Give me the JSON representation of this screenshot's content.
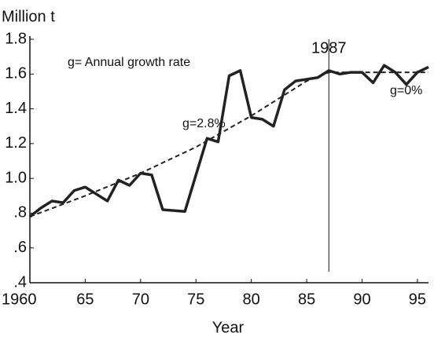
{
  "chart_data": {
    "type": "line",
    "y_label": "Million t",
    "x_label": "Year",
    "annotations": [
      "g= Annual growth rate",
      "g=2.8%",
      "g=0%"
    ],
    "vline": 1987,
    "xlim": [
      1960,
      1996
    ],
    "xticks": [
      {
        "value": 1960,
        "label": "1960"
      },
      {
        "value": 1965,
        "label": "65"
      },
      {
        "value": 1970,
        "label": "70"
      },
      {
        "value": 1975,
        "label": "75"
      },
      {
        "value": 1980,
        "label": "80"
      },
      {
        "value": 1985,
        "label": "85"
      },
      {
        "value": 1990,
        "label": "90"
      },
      {
        "value": 1995,
        "label": "95"
      }
    ],
    "ylim": [
      0.4,
      1.8
    ],
    "yticks": [
      {
        "value": 0.4,
        "label": ".4"
      },
      {
        "value": 0.6,
        "label": ".6"
      },
      {
        "value": 0.8,
        "label": ".8"
      },
      {
        "value": 1.0,
        "label": "1.0"
      },
      1.2,
      1.4,
      1.6,
      1.8
    ],
    "series": [
      {
        "color": "#222222",
        "dashed": false,
        "x": [
          1960,
          1961,
          1962,
          1963,
          1964,
          1965,
          1966,
          1967,
          1968,
          1969,
          1970,
          1971,
          1972,
          1973,
          1974,
          1975,
          1976,
          1977,
          1978,
          1979,
          1980,
          1981,
          1982,
          1983,
          1984,
          1985,
          1986,
          1987,
          1988,
          1989,
          1990,
          1991,
          1992,
          1993,
          1994,
          1995,
          1996
        ],
        "values": [
          0.78,
          0.83,
          0.87,
          0.86,
          0.93,
          0.95,
          0.91,
          0.87,
          0.99,
          0.96,
          1.03,
          1.02,
          0.82,
          0.815,
          0.81,
          1.02,
          1.23,
          1.21,
          1.59,
          1.62,
          1.35,
          1.34,
          1.3,
          1.51,
          1.56,
          1.57,
          1.58,
          1.62,
          1.6,
          1.61,
          1.61,
          1.55,
          1.65,
          1.61,
          1.54,
          1.61,
          1.64
        ]
      },
      {
        "color": "#222222",
        "dashed": true,
        "x": [
          1960,
          1965,
          1970,
          1975,
          1980,
          1985,
          1987,
          1996
        ],
        "values": [
          0.78,
          0.9,
          1.03,
          1.18,
          1.36,
          1.56,
          1.61,
          1.61
        ]
      }
    ]
  }
}
